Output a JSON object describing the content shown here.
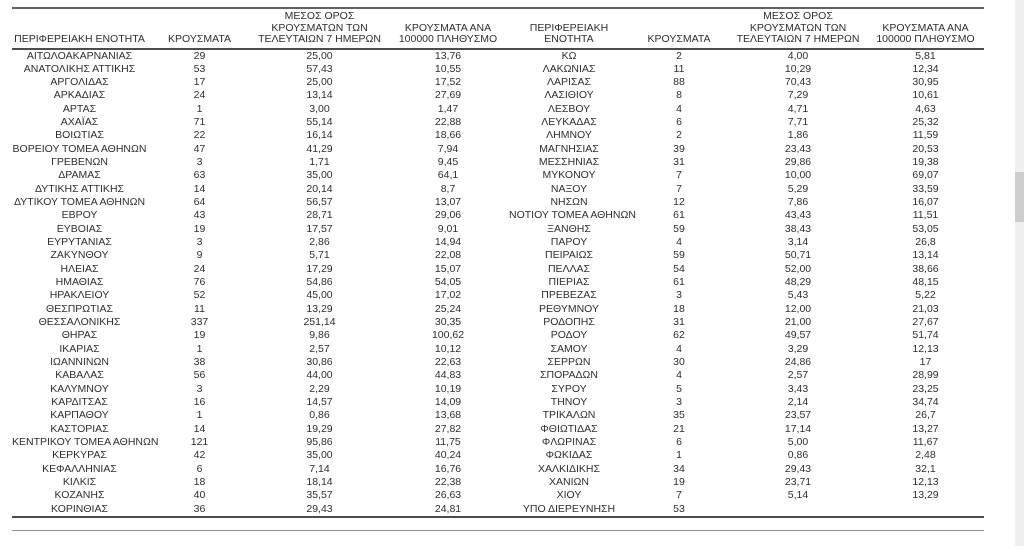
{
  "document": {
    "language": "el",
    "description_of_content": "Table of Greek regional units with COVID-19 case statistics, split into two side-by-side half tables"
  },
  "colors": {
    "background": "#ffffff",
    "text": "#2e2e2e",
    "rule_dark": "#4a4c50",
    "rule_top": "#5f6165",
    "rule_thin": "#8f9194",
    "scrollbar_track": "#f0f0ef",
    "scrollbar_thumb": "#cdcdcd"
  },
  "table": {
    "headers": [
      "ΠΕΡΙΦΕΡΕΙΑΚΗ ΕΝΟΤΗΤΑ",
      "ΚΡΟΥΣΜΑΤΑ",
      "ΜΕΣΟΣ ΟΡΟΣ ΚΡΟΥΣΜΑΤΩΝ ΤΩΝ ΤΕΛΕΥΤΑΙΩΝ 7 ΗΜΕΡΩΝ",
      "ΚΡΟΥΣΜΑΤΑ ΑΝΑ 100000 ΠΛΗΘΥΣΜΟ"
    ],
    "rows_left": [
      [
        "ΑΙΤΩΛΟΑΚΑΡΝΑΝΙΑΣ",
        "29",
        "25,00",
        "13,76"
      ],
      [
        "ΑΝΑΤΟΛΙΚΗΣ ΑΤΤΙΚΗΣ",
        "53",
        "57,43",
        "10,55"
      ],
      [
        "ΑΡΓΟΛΙΔΑΣ",
        "17",
        "25,00",
        "17,52"
      ],
      [
        "ΑΡΚΑΔΙΑΣ",
        "24",
        "13,14",
        "27,69"
      ],
      [
        "ΑΡΤΑΣ",
        "1",
        "3,00",
        "1,47"
      ],
      [
        "ΑΧΑΪΑΣ",
        "71",
        "55,14",
        "22,88"
      ],
      [
        "ΒΟΙΩΤΙΑΣ",
        "22",
        "16,14",
        "18,66"
      ],
      [
        "ΒΟΡΕΙΟΥ ΤΟΜΕΑ ΑΘΗΝΩΝ",
        "47",
        "41,29",
        "7,94"
      ],
      [
        "ΓΡΕΒΕΝΩΝ",
        "3",
        "1,71",
        "9,45"
      ],
      [
        "ΔΡΑΜΑΣ",
        "63",
        "35,00",
        "64,1"
      ],
      [
        "ΔΥΤΙΚΗΣ ΑΤΤΙΚΗΣ",
        "14",
        "20,14",
        "8,7"
      ],
      [
        "ΔΥΤΙΚΟΥ ΤΟΜΕΑ ΑΘΗΝΩΝ",
        "64",
        "56,57",
        "13,07"
      ],
      [
        "ΕΒΡΟΥ",
        "43",
        "28,71",
        "29,06"
      ],
      [
        "ΕΥΒΟΙΑΣ",
        "19",
        "17,57",
        "9,01"
      ],
      [
        "ΕΥΡΥΤΑΝΙΑΣ",
        "3",
        "2,86",
        "14,94"
      ],
      [
        "ΖΑΚΥΝΘΟΥ",
        "9",
        "5,71",
        "22,08"
      ],
      [
        "ΗΛΕΙΑΣ",
        "24",
        "17,29",
        "15,07"
      ],
      [
        "ΗΜΑΘΙΑΣ",
        "76",
        "54,86",
        "54,05"
      ],
      [
        "ΗΡΑΚΛΕΙΟΥ",
        "52",
        "45,00",
        "17,02"
      ],
      [
        "ΘΕΣΠΡΩΤΙΑΣ",
        "11",
        "13,29",
        "25,24"
      ],
      [
        "ΘΕΣΣΑΛΟΝΙΚΗΣ",
        "337",
        "251,14",
        "30,35"
      ],
      [
        "ΘΗΡΑΣ",
        "19",
        "9,86",
        "100,62"
      ],
      [
        "ΙΚΑΡΙΑΣ",
        "1",
        "2,57",
        "10,12"
      ],
      [
        "ΙΩΑΝΝΙΝΩΝ",
        "38",
        "30,86",
        "22,63"
      ],
      [
        "ΚΑΒΑΛΑΣ",
        "56",
        "44,00",
        "44,83"
      ],
      [
        "ΚΑΛΥΜΝΟΥ",
        "3",
        "2,29",
        "10,19"
      ],
      [
        "ΚΑΡΔΙΤΣΑΣ",
        "16",
        "14,57",
        "14,09"
      ],
      [
        "ΚΑΡΠΑΘΟΥ",
        "1",
        "0,86",
        "13,68"
      ],
      [
        "ΚΑΣΤΟΡΙΑΣ",
        "14",
        "19,29",
        "27,82"
      ],
      [
        "ΚΕΝΤΡΙΚΟΥ ΤΟΜΕΑ ΑΘΗΝΩΝ",
        "121",
        "95,86",
        "11,75"
      ],
      [
        "ΚΕΡΚΥΡΑΣ",
        "42",
        "35,00",
        "40,24"
      ],
      [
        "ΚΕΦΑΛΛΗΝΙΑΣ",
        "6",
        "7,14",
        "16,76"
      ],
      [
        "ΚΙΛΚΙΣ",
        "18",
        "18,14",
        "22,38"
      ],
      [
        "ΚΟΖΑΝΗΣ",
        "40",
        "35,57",
        "26,63"
      ],
      [
        "ΚΟΡΙΝΘΙΑΣ",
        "36",
        "29,43",
        "24,81"
      ]
    ],
    "rows_right": [
      [
        "ΚΩ",
        "2",
        "4,00",
        "5,81"
      ],
      [
        "ΛΑΚΩΝΙΑΣ",
        "11",
        "10,29",
        "12,34"
      ],
      [
        "ΛΑΡΙΣΑΣ",
        "88",
        "70,43",
        "30,95"
      ],
      [
        "ΛΑΣΙΘΙΟΥ",
        "8",
        "7,29",
        "10,61"
      ],
      [
        "ΛΕΣΒΟΥ",
        "4",
        "4,71",
        "4,63"
      ],
      [
        "ΛΕΥΚΑΔΑΣ",
        "6",
        "7,71",
        "25,32"
      ],
      [
        "ΛΗΜΝΟΥ",
        "2",
        "1,86",
        "11,59"
      ],
      [
        "ΜΑΓΝΗΣΙΑΣ",
        "39",
        "23,43",
        "20,53"
      ],
      [
        "ΜΕΣΣΗΝΙΑΣ",
        "31",
        "29,86",
        "19,38"
      ],
      [
        "ΜΥΚΟΝΟΥ",
        "7",
        "10,00",
        "69,07"
      ],
      [
        "ΝΑΞΟΥ",
        "7",
        "5,29",
        "33,59"
      ],
      [
        "ΝΗΣΩΝ",
        "12",
        "7,86",
        "16,07"
      ],
      [
        "ΝΟΤΙΟΥ ΤΟΜΕΑ ΑΘΗΝΩΝ",
        "61",
        "43,43",
        "11,51"
      ],
      [
        "ΞΑΝΘΗΣ",
        "59",
        "38,43",
        "53,05"
      ],
      [
        "ΠΑΡΟΥ",
        "4",
        "3,14",
        "26,8"
      ],
      [
        "ΠΕΙΡΑΙΩΣ",
        "59",
        "50,71",
        "13,14"
      ],
      [
        "ΠΕΛΛΑΣ",
        "54",
        "52,00",
        "38,66"
      ],
      [
        "ΠΙΕΡΙΑΣ",
        "61",
        "48,29",
        "48,15"
      ],
      [
        "ΠΡΕΒΕΖΑΣ",
        "3",
        "5,43",
        "5,22"
      ],
      [
        "ΡΕΘΥΜΝΟΥ",
        "18",
        "12,00",
        "21,03"
      ],
      [
        "ΡΟΔΟΠΗΣ",
        "31",
        "21,00",
        "27,67"
      ],
      [
        "ΡΟΔΟΥ",
        "62",
        "49,57",
        "51,74"
      ],
      [
        "ΣΑΜΟΥ",
        "4",
        "3,29",
        "12,13"
      ],
      [
        "ΣΕΡΡΩΝ",
        "30",
        "24,86",
        "17"
      ],
      [
        "ΣΠΟΡΑΔΩΝ",
        "4",
        "2,57",
        "28,99"
      ],
      [
        "ΣΥΡΟΥ",
        "5",
        "3,43",
        "23,25"
      ],
      [
        "ΤΗΝΟΥ",
        "3",
        "2,14",
        "34,74"
      ],
      [
        "ΤΡΙΚΑΛΩΝ",
        "35",
        "23,57",
        "26,7"
      ],
      [
        "ΦΘΙΩΤΙΔΑΣ",
        "21",
        "17,14",
        "13,27"
      ],
      [
        "ΦΛΩΡΙΝΑΣ",
        "6",
        "5,00",
        "11,67"
      ],
      [
        "ΦΩΚΙΔΑΣ",
        "1",
        "0,86",
        "2,48"
      ],
      [
        "ΧΑΛΚΙΔΙΚΗΣ",
        "34",
        "29,43",
        "32,1"
      ],
      [
        "ΧΑΝΙΩΝ",
        "19",
        "23,71",
        "12,13"
      ],
      [
        "ΧΙΟΥ",
        "7",
        "5,14",
        "13,29"
      ],
      [
        "ΥΠΟ ΔΙΕΡΕΥΝΗΣΗ",
        "53",
        "",
        ""
      ]
    ]
  }
}
